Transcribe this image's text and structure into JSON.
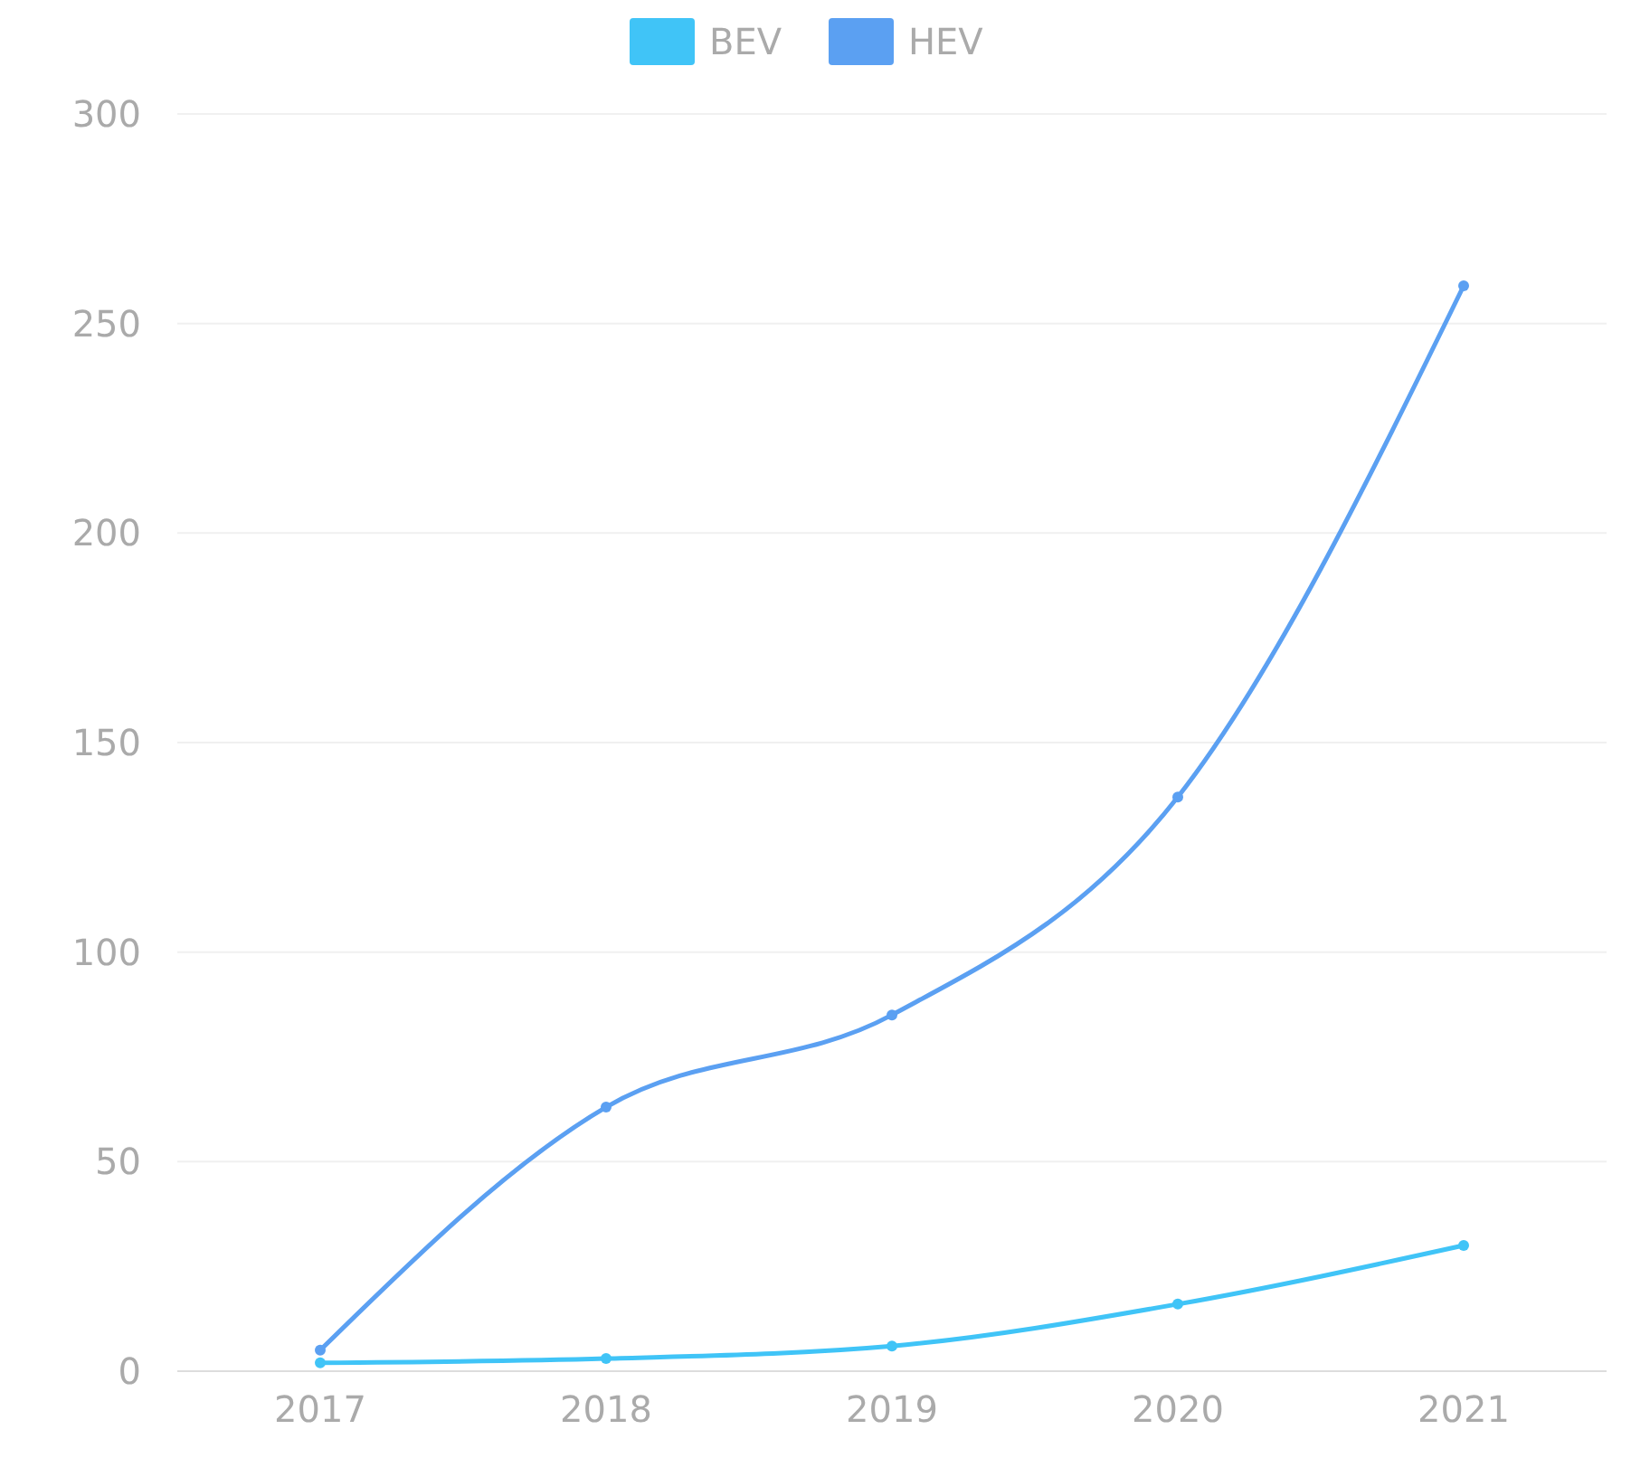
{
  "chart_data": {
    "type": "line",
    "categories": [
      "2017",
      "2018",
      "2019",
      "2020",
      "2021"
    ],
    "series": [
      {
        "name": "BEV",
        "color": "#40c4f7",
        "values": [
          2,
          3,
          6,
          16,
          30
        ]
      },
      {
        "name": "HEV",
        "color": "#5ba0f2",
        "values": [
          5,
          63,
          85,
          137,
          259
        ]
      }
    ],
    "ylim": [
      0,
      300
    ],
    "yticks": [
      0,
      50,
      100,
      150,
      200,
      250,
      300
    ],
    "grid": "y",
    "legend": "top",
    "marker": "circle",
    "line_style": "solid"
  }
}
